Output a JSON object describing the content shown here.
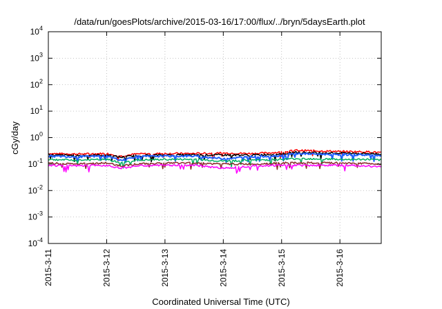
{
  "chart_data": {
    "type": "line",
    "title": "/data/run/goesPlots/archive/2015-03-16/17:00/flux/../bryn/5daysEarth.plot",
    "xlabel": "Coordinated Universal Time (UTC)",
    "ylabel": "cGy/day",
    "yscale": "log",
    "ylim": [
      0.0001,
      10000
    ],
    "y_ticks": [
      {
        "base": "10",
        "exp": "-4",
        "value": 0.0001
      },
      {
        "base": "10",
        "exp": "-3",
        "value": 0.001
      },
      {
        "base": "10",
        "exp": "-2",
        "value": 0.01
      },
      {
        "base": "10",
        "exp": "-1",
        "value": 0.1
      },
      {
        "base": "10",
        "exp": "0",
        "value": 1
      },
      {
        "base": "10",
        "exp": "1",
        "value": 10
      },
      {
        "base": "10",
        "exp": "2",
        "value": 100
      },
      {
        "base": "10",
        "exp": "3",
        "value": 1000
      },
      {
        "base": "10",
        "exp": "4",
        "value": 10000
      }
    ],
    "xlim": [
      "2015-03-11 00:00",
      "2015-03-16 17:00"
    ],
    "x_ticks": [
      "2015-3-11",
      "2015-3-12",
      "2015-3-13",
      "2015-3-14",
      "2015-3-15",
      "2015-3-16"
    ],
    "grid": true,
    "series": [
      {
        "color": "#ff0000",
        "x": [
          "2015-03-11",
          "2015-03-11 12:00",
          "2015-03-12",
          "2015-03-12 06:00",
          "2015-03-12 12:00",
          "2015-03-13",
          "2015-03-13 12:00",
          "2015-03-14",
          "2015-03-14 12:00",
          "2015-03-15",
          "2015-03-15 06:00",
          "2015-03-15 12:00",
          "2015-03-16",
          "2015-03-16 12:00",
          "2015-03-16 17:00"
        ],
        "values": [
          0.25,
          0.24,
          0.25,
          0.2,
          0.24,
          0.25,
          0.25,
          0.26,
          0.25,
          0.28,
          0.33,
          0.32,
          0.3,
          0.29,
          0.27
        ]
      },
      {
        "color": "#000000",
        "x": [
          "2015-03-11",
          "2015-03-11 12:00",
          "2015-03-12",
          "2015-03-12 06:00",
          "2015-03-12 12:00",
          "2015-03-13",
          "2015-03-13 12:00",
          "2015-03-14",
          "2015-03-14 12:00",
          "2015-03-15",
          "2015-03-15 06:00",
          "2015-03-15 12:00",
          "2015-03-16",
          "2015-03-16 12:00",
          "2015-03-16 17:00"
        ],
        "values": [
          0.22,
          0.21,
          0.22,
          0.18,
          0.21,
          0.22,
          0.22,
          0.22,
          0.22,
          0.24,
          0.28,
          0.27,
          0.26,
          0.25,
          0.24
        ]
      },
      {
        "color": "#1f5fff",
        "x": [
          "2015-03-11",
          "2015-03-11 12:00",
          "2015-03-12",
          "2015-03-12 06:00",
          "2015-03-12 12:00",
          "2015-03-13",
          "2015-03-13 12:00",
          "2015-03-14",
          "2015-03-14 12:00",
          "2015-03-15",
          "2015-03-15 06:00",
          "2015-03-15 12:00",
          "2015-03-16",
          "2015-03-16 12:00",
          "2015-03-16 17:00"
        ],
        "values": [
          0.2,
          0.19,
          0.2,
          0.14,
          0.19,
          0.2,
          0.2,
          0.16,
          0.19,
          0.21,
          0.25,
          0.24,
          0.23,
          0.22,
          0.21
        ]
      },
      {
        "color": "#00b060",
        "x": [
          "2015-03-11",
          "2015-03-11 12:00",
          "2015-03-12",
          "2015-03-12 06:00",
          "2015-03-12 12:00",
          "2015-03-13",
          "2015-03-13 12:00",
          "2015-03-14",
          "2015-03-14 12:00",
          "2015-03-15",
          "2015-03-15 06:00",
          "2015-03-15 12:00",
          "2015-03-16",
          "2015-03-16 12:00",
          "2015-03-16 17:00"
        ],
        "values": [
          0.15,
          0.14,
          0.15,
          0.11,
          0.14,
          0.15,
          0.15,
          0.13,
          0.14,
          0.15,
          0.16,
          0.16,
          0.15,
          0.15,
          0.14
        ]
      },
      {
        "color": "#8b2a2a",
        "x": [
          "2015-03-11",
          "2015-03-11 12:00",
          "2015-03-12",
          "2015-03-12 06:00",
          "2015-03-12 12:00",
          "2015-03-13",
          "2015-03-13 12:00",
          "2015-03-14",
          "2015-03-14 12:00",
          "2015-03-15",
          "2015-03-15 06:00",
          "2015-03-15 12:00",
          "2015-03-16",
          "2015-03-16 12:00",
          "2015-03-16 17:00"
        ],
        "values": [
          0.11,
          0.1,
          0.11,
          0.085,
          0.1,
          0.11,
          0.11,
          0.1,
          0.1,
          0.11,
          0.11,
          0.11,
          0.11,
          0.105,
          0.1
        ]
      },
      {
        "color": "#ff00ff",
        "x": [
          "2015-03-11",
          "2015-03-11 12:00",
          "2015-03-12",
          "2015-03-12 06:00",
          "2015-03-12 12:00",
          "2015-03-13",
          "2015-03-13 12:00",
          "2015-03-14",
          "2015-03-14 12:00",
          "2015-03-15",
          "2015-03-15 06:00",
          "2015-03-15 12:00",
          "2015-03-16",
          "2015-03-16 12:00",
          "2015-03-16 17:00"
        ],
        "values": [
          0.09,
          0.085,
          0.09,
          0.07,
          0.085,
          0.09,
          0.09,
          0.07,
          0.085,
          0.09,
          0.09,
          0.09,
          0.09,
          0.085,
          0.08
        ]
      }
    ]
  }
}
